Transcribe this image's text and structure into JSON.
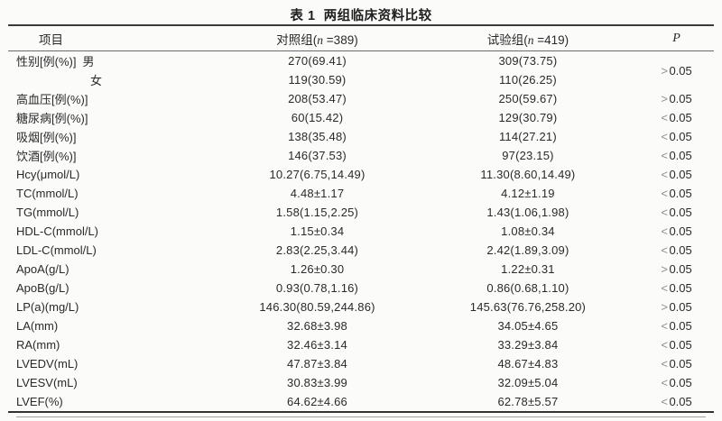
{
  "table": {
    "title": "表 1  两组临床资料比较",
    "header": {
      "item": "项目",
      "control": {
        "prefix": "对照组(",
        "n": "n",
        "suffix": " =389)"
      },
      "trial": {
        "prefix": "试验组(",
        "n": "n",
        "suffix": " =419)"
      },
      "p": "P"
    },
    "rows": [
      {
        "label": "性别[例(%)]",
        "sub": "男",
        "control": "270(69.41)",
        "trial": "309(73.75)",
        "p_op": ">",
        "p_num": "0.05"
      },
      {
        "label": "",
        "sub": "女",
        "control": "119(30.59)",
        "trial": "110(26.25)",
        "p_op": "",
        "p_num": ""
      },
      {
        "label": "高血压[例(%)]",
        "control": "208(53.47)",
        "trial": "250(59.67)",
        "p_op": ">",
        "p_num": "0.05"
      },
      {
        "label": "糖尿病[例(%)]",
        "control": "60(15.42)",
        "trial": "129(30.79)",
        "p_op": "<",
        "p_num": "0.05"
      },
      {
        "label": "吸烟[例(%)]",
        "control": "138(35.48)",
        "trial": "114(27.21)",
        "p_op": "<",
        "p_num": "0.05"
      },
      {
        "label": "饮酒[例(%)]",
        "control": "146(37.53)",
        "trial": "97(23.15)",
        "p_op": "<",
        "p_num": "0.05"
      },
      {
        "label": "Hcy(μmol/L)",
        "control": "10.27(6.75,14.49)",
        "trial": "11.30(8.60,14.49)",
        "p_op": "<",
        "p_num": "0.05"
      },
      {
        "label": "TC(mmol/L)",
        "control": "4.48±1.17",
        "trial": "4.12±1.19",
        "p_op": "<",
        "p_num": "0.05"
      },
      {
        "label": "TG(mmol/L)",
        "control": "1.58(1.15,2.25)",
        "trial": "1.43(1.06,1.98)",
        "p_op": "<",
        "p_num": "0.05"
      },
      {
        "label": "HDL-C(mmol/L)",
        "control": "1.15±0.34",
        "trial": "1.08±0.34",
        "p_op": "<",
        "p_num": "0.05"
      },
      {
        "label": "LDL-C(mmol/L)",
        "control": "2.83(2.25,3.44)",
        "trial": "2.42(1.89,3.09)",
        "p_op": "<",
        "p_num": "0.05"
      },
      {
        "label": "ApoA(g/L)",
        "control": "1.26±0.30",
        "trial": "1.22±0.31",
        "p_op": ">",
        "p_num": "0.05"
      },
      {
        "label": "ApoB(g/L)",
        "control": "0.93(0.78,1.16)",
        "trial": "0.86(0.68,1.10)",
        "p_op": "<",
        "p_num": "0.05"
      },
      {
        "label": "LP(a)(mg/L)",
        "control": "146.30(80.59,244.86)",
        "trial": "145.63(76.76,258.20)",
        "p_op": ">",
        "p_num": "0.05"
      },
      {
        "label": "LA(mm)",
        "control": "32.68±3.98",
        "trial": "34.05±4.65",
        "p_op": "<",
        "p_num": "0.05"
      },
      {
        "label": "RA(mm)",
        "control": "32.46±3.14",
        "trial": "33.29±3.84",
        "p_op": "<",
        "p_num": "0.05"
      },
      {
        "label": "LVEDV(mL)",
        "control": "47.87±3.84",
        "trial": "48.67±4.83",
        "p_op": "<",
        "p_num": "0.05"
      },
      {
        "label": "LVESV(mL)",
        "control": "30.83±3.99",
        "trial": "32.09±5.04",
        "p_op": "<",
        "p_num": "0.05"
      },
      {
        "label": "LVEF(%)",
        "control": "64.62±4.66",
        "trial": "62.78±5.57",
        "p_op": "<",
        "p_num": "0.05"
      }
    ]
  }
}
